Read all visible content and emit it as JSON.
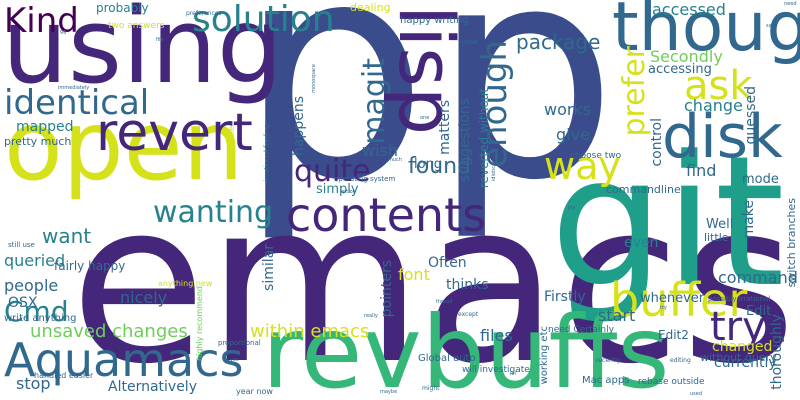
{
  "palette": {
    "purple": "#44277a",
    "indigo": "#3b4c8c",
    "blue": "#31688e",
    "teal": "#26828e",
    "sea": "#1f9e89",
    "green": "#35b779",
    "lime": "#6ece58",
    "yellow": "#d5e21a",
    "dark": "#440154"
  },
  "words": [
    {
      "key": "p1",
      "text": "p"
    },
    {
      "key": "p2",
      "text": "p"
    },
    {
      "key": "emacs",
      "text": "emacs"
    },
    {
      "key": "git",
      "text": "git"
    },
    {
      "key": "revbuffs",
      "text": "revbuffs"
    },
    {
      "key": "using",
      "text": "using"
    },
    {
      "key": "open",
      "text": "open"
    },
    {
      "key": "lisp",
      "text": "lisp"
    },
    {
      "key": "though",
      "text": "though"
    },
    {
      "key": "disk",
      "text": "disk"
    },
    {
      "key": "contents",
      "text": "contents"
    },
    {
      "key": "revert",
      "text": "revert"
    },
    {
      "key": "identical",
      "text": "identical"
    },
    {
      "key": "aquamacs",
      "text": "Aquamacs"
    },
    {
      "key": "buffer",
      "text": "buffer"
    },
    {
      "key": "kind",
      "text": "Kind"
    },
    {
      "key": "solution",
      "text": "solution"
    },
    {
      "key": "wanting",
      "text": "wanting"
    },
    {
      "key": "quite",
      "text": "quite"
    },
    {
      "key": "way",
      "text": "way"
    },
    {
      "key": "ask",
      "text": "ask"
    },
    {
      "key": "try",
      "text": "try"
    },
    {
      "key": "enough",
      "text": "enough"
    },
    {
      "key": "magit",
      "text": "magit"
    },
    {
      "key": "prefer",
      "text": "prefer"
    },
    {
      "key": "package",
      "text": "package"
    },
    {
      "key": "found",
      "text": "found"
    },
    {
      "key": "cmd",
      "text": "Cmd"
    },
    {
      "key": "unsaved",
      "text": "unsaved changes"
    },
    {
      "key": "within",
      "text": "within emacs"
    },
    {
      "key": "accessed",
      "text": "accessed"
    },
    {
      "key": "want",
      "text": "want"
    },
    {
      "key": "queried",
      "text": "queried"
    },
    {
      "key": "change",
      "text": "change"
    },
    {
      "key": "secondly",
      "text": "Secondly"
    },
    {
      "key": "accessing",
      "text": "accessing"
    },
    {
      "key": "works",
      "text": "works"
    },
    {
      "key": "give",
      "text": "give"
    },
    {
      "key": "mapped",
      "text": "mapped"
    },
    {
      "key": "pretty_much",
      "text": "pretty much"
    },
    {
      "key": "happens",
      "text": "happens"
    },
    {
      "key": "matters",
      "text": "matters"
    },
    {
      "key": "suggestions",
      "text": "suggestions"
    },
    {
      "key": "reverted",
      "text": "reverted without"
    },
    {
      "key": "wish",
      "text": "wish"
    },
    {
      "key": "long",
      "text": "long"
    },
    {
      "key": "simply",
      "text": "simply"
    },
    {
      "key": "control",
      "text": "control"
    },
    {
      "key": "find",
      "text": "find"
    },
    {
      "key": "guessed",
      "text": "guessed"
    },
    {
      "key": "mode",
      "text": "mode"
    },
    {
      "key": "commandline",
      "text": "commandline"
    },
    {
      "key": "make",
      "text": "make"
    },
    {
      "key": "switch",
      "text": "switch branches"
    },
    {
      "key": "well",
      "text": "Well"
    },
    {
      "key": "edit",
      "text": "Edit"
    },
    {
      "key": "little",
      "text": "little"
    },
    {
      "key": "even",
      "text": "even"
    },
    {
      "key": "command",
      "text": "command"
    },
    {
      "key": "often",
      "text": "Often"
    },
    {
      "key": "font",
      "text": "font"
    },
    {
      "key": "thinks",
      "text": "thinks"
    },
    {
      "key": "similar",
      "text": "similar"
    },
    {
      "key": "pointers",
      "text": "pointers"
    },
    {
      "key": "firstly",
      "text": "Firstly"
    },
    {
      "key": "people",
      "text": "people"
    },
    {
      "key": "osx",
      "text": "OSX"
    },
    {
      "key": "nicely",
      "text": "nicely"
    },
    {
      "key": "files",
      "text": "files"
    },
    {
      "key": "start",
      "text": "start"
    },
    {
      "key": "edit2",
      "text": "Edit2"
    },
    {
      "key": "changed",
      "text": "changed"
    },
    {
      "key": "currently",
      "text": "currently"
    },
    {
      "key": "thoroughly",
      "text": "thoroughly"
    },
    {
      "key": "whenever",
      "text": "whenever"
    },
    {
      "key": "without_query",
      "text": "without query"
    },
    {
      "key": "mac_apps",
      "text": "Mac apps"
    },
    {
      "key": "rebase",
      "text": "rebase outside"
    },
    {
      "key": "stop",
      "text": "stop"
    },
    {
      "key": "alternatively",
      "text": "Alternatively"
    },
    {
      "key": "working",
      "text": "working etc"
    },
    {
      "key": "global_auto",
      "text": "Global auto"
    },
    {
      "key": "investigate",
      "text": "will investigate"
    },
    {
      "key": "fairly_happy",
      "text": "fairly happy"
    },
    {
      "key": "write_anything",
      "text": "write anything"
    },
    {
      "key": "handled_easier",
      "text": "handled easier"
    },
    {
      "key": "probably",
      "text": "probably"
    },
    {
      "key": "two_answers",
      "text": "two answers"
    },
    {
      "key": "dealing",
      "text": "dealing"
    },
    {
      "key": "happy_writing",
      "text": "happy writing"
    },
    {
      "key": "preferences",
      "text": "preferences"
    },
    {
      "key": "need_certainly",
      "text": "need Certainly"
    },
    {
      "key": "choose_two",
      "text": "choose two"
    },
    {
      "key": "possibly_irrational",
      "text": "possibly irrational"
    },
    {
      "key": "perfectly_fine",
      "text": "perfectly fine"
    },
    {
      "key": "irrational_feeling",
      "text": "irrational feeling"
    },
    {
      "key": "highly_recommend",
      "text": "highly recommend"
    },
    {
      "key": "operating_system",
      "text": "operating system"
    },
    {
      "key": "anything_new",
      "text": "anything new"
    },
    {
      "key": "proportional",
      "text": "proportional"
    },
    {
      "key": "year_now",
      "text": "year now"
    },
    {
      "key": "still_use",
      "text": "still use"
    },
    {
      "key": "recently",
      "text": "recently"
    },
    {
      "key": "editing",
      "text": "editing"
    },
    {
      "key": "great",
      "text": "great"
    },
    {
      "key": "much",
      "text": "much"
    },
    {
      "key": "one",
      "text": "one"
    },
    {
      "key": "really",
      "text": "really"
    },
    {
      "key": "except",
      "text": "except"
    },
    {
      "key": "might",
      "text": "might"
    },
    {
      "key": "need",
      "text": "need"
    },
    {
      "key": "tty",
      "text": "tty"
    },
    {
      "key": "monospace",
      "text": "monospace"
    },
    {
      "key": "option",
      "text": "option"
    },
    {
      "key": "idiotic",
      "text": "idiotic"
    },
    {
      "key": "yes",
      "text": "yes"
    },
    {
      "key": "lol",
      "text": "lol"
    },
    {
      "key": "gg",
      "text": "gg"
    },
    {
      "key": "file",
      "text": "file"
    },
    {
      "key": "thread",
      "text": "thread"
    },
    {
      "key": "x",
      "text": "x"
    },
    {
      "key": "joy",
      "text": "joy"
    },
    {
      "key": "said",
      "text": "said"
    },
    {
      "key": "immediately",
      "text": "immediately"
    },
    {
      "key": "used",
      "text": "used"
    },
    {
      "key": "maybe",
      "text": "maybe"
    }
  ]
}
